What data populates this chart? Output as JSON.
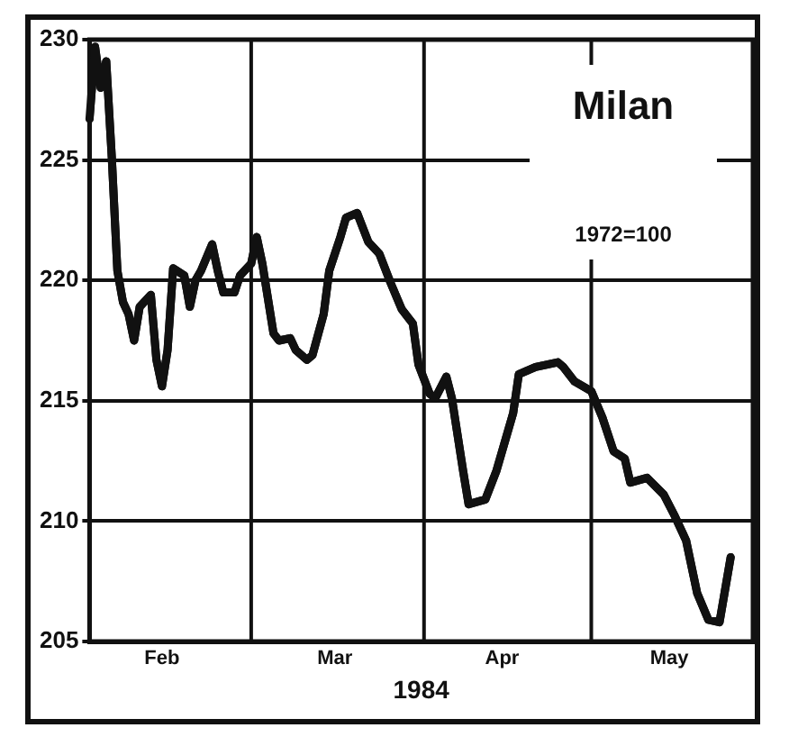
{
  "chart_data": {
    "type": "line",
    "title": "Milan",
    "subtitle": "1972=100",
    "xlabel": "1984",
    "x": [
      "1984-02-01",
      "1984-02-02",
      "1984-02-03",
      "1984-02-04",
      "1984-02-05",
      "1984-02-06",
      "1984-02-07",
      "1984-02-08",
      "1984-02-09",
      "1984-02-10",
      "1984-02-12",
      "1984-02-13",
      "1984-02-14",
      "1984-02-15",
      "1984-02-16",
      "1984-02-18",
      "1984-02-19",
      "1984-02-20",
      "1984-02-21",
      "1984-02-23",
      "1984-02-24",
      "1984-02-25",
      "1984-02-27",
      "1984-02-28",
      "1984-03-01",
      "1984-03-02",
      "1984-03-03",
      "1984-03-05",
      "1984-03-06",
      "1984-03-08",
      "1984-03-09",
      "1984-03-11",
      "1984-03-12",
      "1984-03-14",
      "1984-03-15",
      "1984-03-17",
      "1984-03-18",
      "1984-03-20",
      "1984-03-22",
      "1984-03-24",
      "1984-03-26",
      "1984-03-28",
      "1984-03-30",
      "1984-03-31",
      "1984-04-02",
      "1984-04-03",
      "1984-04-05",
      "1984-04-06",
      "1984-04-08",
      "1984-04-09",
      "1984-04-12",
      "1984-04-14",
      "1984-04-17",
      "1984-04-18",
      "1984-04-21",
      "1984-04-25",
      "1984-04-26",
      "1984-04-28",
      "1984-05-01",
      "1984-05-03",
      "1984-05-05",
      "1984-05-07",
      "1984-05-08",
      "1984-05-11",
      "1984-05-14",
      "1984-05-16",
      "1984-05-18",
      "1984-05-20",
      "1984-05-22",
      "1984-05-24",
      "1984-05-26"
    ],
    "series": [
      {
        "color": "#111111",
        "values": [
          226.7,
          229.7,
          228.0,
          229.1,
          225.1,
          220.4,
          219.1,
          218.6,
          217.5,
          218.9,
          219.4,
          216.7,
          215.6,
          217.1,
          220.5,
          220.2,
          218.9,
          220.0,
          220.4,
          221.5,
          220.4,
          219.5,
          219.5,
          220.2,
          220.7,
          221.8,
          220.7,
          217.8,
          217.5,
          217.6,
          217.1,
          216.7,
          216.9,
          218.6,
          220.4,
          221.8,
          222.6,
          222.8,
          221.6,
          221.1,
          219.9,
          218.8,
          218.2,
          216.5,
          215.3,
          215.1,
          216.0,
          215.1,
          212.1,
          210.7,
          210.9,
          212.1,
          214.5,
          216.1,
          216.4,
          216.6,
          216.4,
          215.8,
          215.4,
          214.3,
          212.9,
          212.6,
          211.6,
          211.8,
          211.1,
          210.2,
          209.2,
          207.0,
          205.9,
          205.8,
          208.5
        ]
      }
    ],
    "xlim": [
      "1984-02-01",
      "1984-05-30"
    ],
    "xticks": [
      {
        "value": "1984-02-14",
        "label": "Feb"
      },
      {
        "value": "1984-03-16",
        "label": "Mar"
      },
      {
        "value": "1984-04-15",
        "label": "Apr"
      },
      {
        "value": "1984-05-15",
        "label": "May"
      }
    ],
    "ylim": [
      205,
      230
    ],
    "yticks": [
      205,
      210,
      215,
      220,
      225,
      230
    ],
    "grid": "y",
    "legend": false,
    "marker": "none",
    "line_style": "solid",
    "ref_lines": [
      {
        "axis": "x",
        "value": "1984-03-01"
      },
      {
        "axis": "x",
        "value": "1984-04-01"
      },
      {
        "axis": "x",
        "value": "1984-05-01"
      }
    ]
  }
}
